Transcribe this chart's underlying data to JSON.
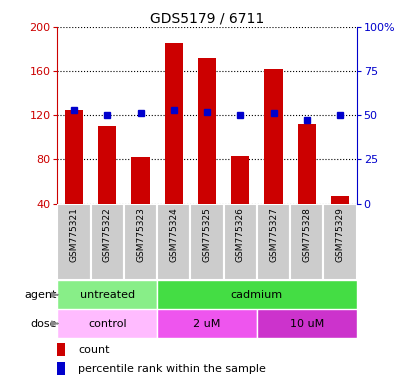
{
  "title": "GDS5179 / 6711",
  "samples": [
    "GSM775321",
    "GSM775322",
    "GSM775323",
    "GSM775324",
    "GSM775325",
    "GSM775326",
    "GSM775327",
    "GSM775328",
    "GSM775329"
  ],
  "counts": [
    125,
    110,
    82,
    185,
    172,
    83,
    162,
    112,
    47
  ],
  "percentiles": [
    53,
    50,
    51,
    53,
    52,
    50,
    51,
    47,
    50
  ],
  "left_ylim": [
    40,
    200
  ],
  "right_ylim": [
    0,
    100
  ],
  "left_yticks": [
    40,
    80,
    120,
    160,
    200
  ],
  "right_yticks": [
    0,
    25,
    50,
    75,
    100
  ],
  "right_yticklabels": [
    "0",
    "25",
    "50",
    "75",
    "100%"
  ],
  "bar_color": "#cc0000",
  "dot_color": "#0000cc",
  "agent_groups": [
    {
      "label": "untreated",
      "start": 0,
      "end": 3,
      "color": "#88ee88"
    },
    {
      "label": "cadmium",
      "start": 3,
      "end": 9,
      "color": "#44dd44"
    }
  ],
  "dose_groups": [
    {
      "label": "control",
      "start": 0,
      "end": 3,
      "color": "#ffbbff"
    },
    {
      "label": "2 uM",
      "start": 3,
      "end": 6,
      "color": "#ee55ee"
    },
    {
      "label": "10 uM",
      "start": 6,
      "end": 9,
      "color": "#cc33cc"
    }
  ],
  "tick_bg_color": "#cccccc",
  "title_fontsize": 10,
  "axis_label_color_left": "#cc0000",
  "axis_label_color_right": "#0000cc"
}
